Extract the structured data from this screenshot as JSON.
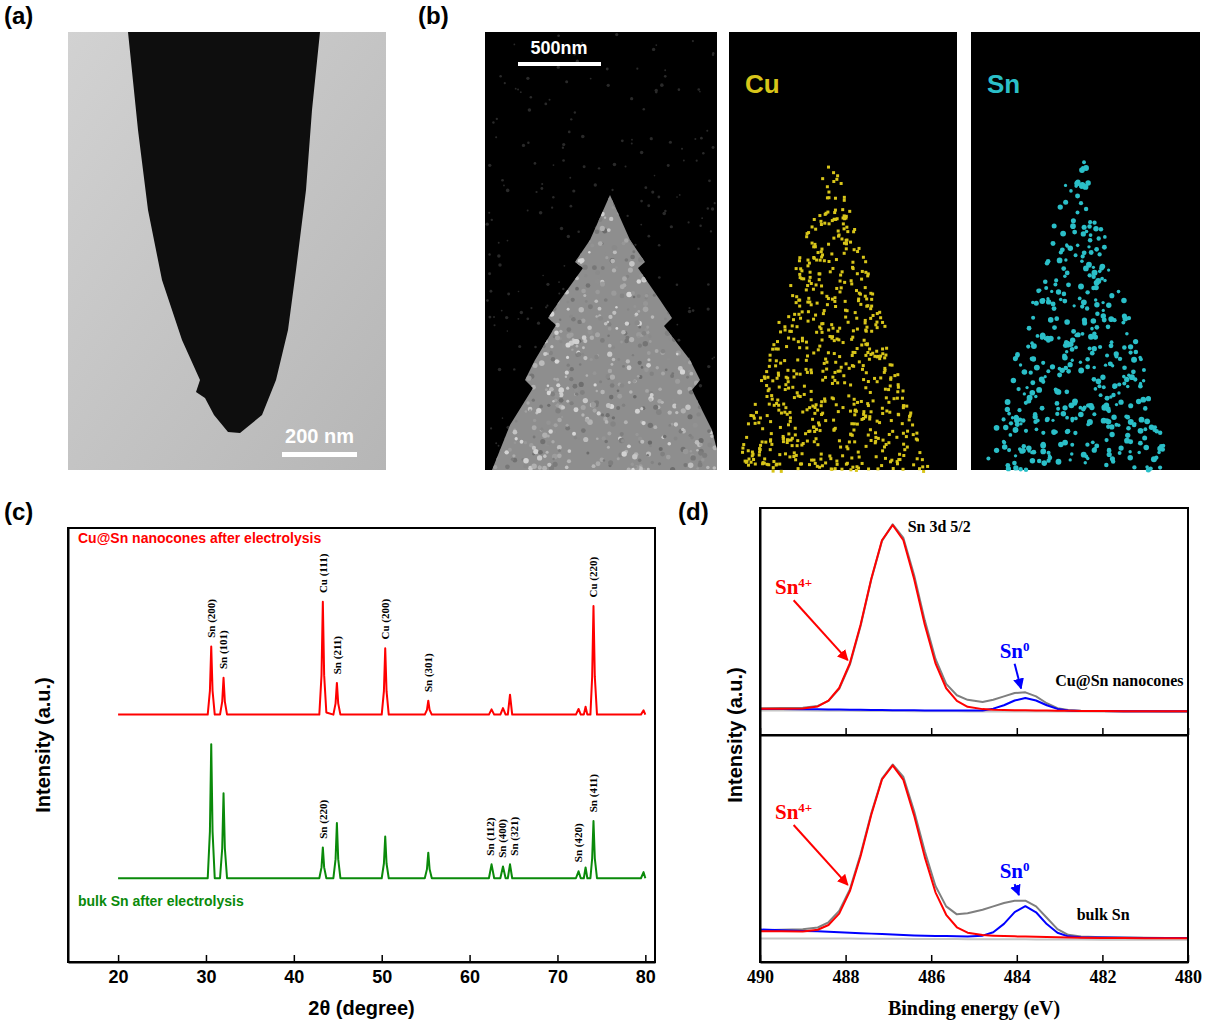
{
  "images": [
    {
      "letter": "(a)",
      "scale_bar": "200 nm"
    },
    {
      "letter": "(b)",
      "scale_bar": "500nm",
      "maps": [
        {
          "label": "Cu",
          "color": "#d8c51a"
        },
        {
          "label": "Sn",
          "color": "#2bbfc8"
        }
      ]
    }
  ],
  "chart_data": [
    {
      "letter": "(c)",
      "type": "line",
      "xlabel": "2θ (degree)",
      "ylabel": "Intensity (a.u.)",
      "xlim": [
        14.3,
        81.1
      ],
      "xticks": [
        20,
        30,
        40,
        50,
        60,
        70,
        80
      ],
      "ylim": [
        0,
        100
      ],
      "yticks": [],
      "tick_labels": "x",
      "x": [
        20,
        25,
        30.2,
        30.45,
        30.6,
        30.75,
        31,
        31.6,
        31.85,
        32,
        32.15,
        32.4,
        38,
        42.9,
        43.15,
        43.3,
        43.45,
        43.7,
        44.5,
        44.75,
        44.9,
        45.05,
        45.3,
        48,
        50,
        50.25,
        50.4,
        50.55,
        50.8,
        53,
        54.9,
        55.15,
        55.3,
        55.45,
        55.7,
        60,
        62.2,
        62.5,
        62.8,
        63.5,
        63.8,
        64.1,
        64.35,
        64.6,
        64.85,
        68,
        72.1,
        72.4,
        72.65,
        73,
        73.2,
        73.4,
        73.75,
        73.95,
        74.1,
        74.25,
        74.5,
        77,
        79.5,
        79.8,
        80
      ],
      "series": [
        {
          "name": "Cu@Sn nanocones after electrolysis",
          "color": "#ff0000",
          "values": [
            57,
            57,
            57,
            62.5,
            72.7,
            62.5,
            57,
            57,
            60,
            65.5,
            60,
            57,
            57,
            57,
            66.1,
            83,
            66.1,
            57.5,
            57,
            59.6,
            64.3,
            59.6,
            57,
            57,
            57,
            62.4,
            72.3,
            62.4,
            57,
            57,
            57,
            58.1,
            60.2,
            58.1,
            57,
            57,
            57,
            58.2,
            57,
            57,
            58.5,
            57,
            57,
            61.6,
            57,
            57,
            57,
            58.3,
            57,
            57,
            58.8,
            57,
            57,
            65.8,
            82,
            65.8,
            57,
            57,
            57,
            58,
            57
          ]
        },
        {
          "name": "bulk Sn after electrolysis",
          "color": "#0a8a0a",
          "values": [
            19.3,
            19.3,
            19.3,
            30.1,
            50.2,
            30.1,
            19.3,
            19.3,
            26.2,
            38.9,
            26.2,
            19.3,
            19.3,
            19.3,
            21.8,
            26.4,
            21.8,
            19.3,
            19.3,
            23.7,
            32,
            23.7,
            19.3,
            19.3,
            19.3,
            22.7,
            28.9,
            22.7,
            19.3,
            19.3,
            19.3,
            21.4,
            25.2,
            21.4,
            19.3,
            19.3,
            19.3,
            22.5,
            19.3,
            19.3,
            22,
            19.3,
            19.3,
            22.5,
            19.3,
            19.3,
            19.3,
            20.9,
            19.3,
            19.3,
            21.8,
            19.3,
            19.3,
            23.9,
            32.5,
            23.9,
            19.3,
            19.3,
            19.3,
            20.7,
            19.3
          ]
        }
      ],
      "annotations": [
        {
          "text": "Sn (200)",
          "x": 30.6,
          "y": 74.7
        },
        {
          "text": "Sn (101)",
          "x": 32,
          "y": 67.5
        },
        {
          "text": "Cu (111)",
          "x": 43.3,
          "y": 85
        },
        {
          "text": "Sn (211)",
          "x": 44.9,
          "y": 66.3
        },
        {
          "text": "Cu (200)",
          "x": 50.4,
          "y": 74.3
        },
        {
          "text": "Sn (301)",
          "x": 55.3,
          "y": 62.2
        },
        {
          "text": "Cu (220)",
          "x": 74.1,
          "y": 84
        },
        {
          "text": "Sn (220)",
          "x": 43.3,
          "y": 28.4
        },
        {
          "text": "Sn (112)",
          "x": 62.3,
          "y": 24.5
        },
        {
          "text": "Sn (400)",
          "x": 63.7,
          "y": 24
        },
        {
          "text": "Sn (321)",
          "x": 65.1,
          "y": 24.5
        },
        {
          "text": "Sn (420)",
          "x": 72.3,
          "y": 23
        },
        {
          "text": "Sn (411)",
          "x": 74.1,
          "y": 34.5
        }
      ]
    },
    {
      "letter": "(d)",
      "type": "line",
      "xlabel": "Binding energy (eV)",
      "ylabel": "Intensity (a.u.)",
      "xlim": [
        490,
        480
      ],
      "xticks": [
        490,
        488,
        486,
        484,
        482,
        480
      ],
      "tick_labels": "x",
      "subplots": [
        {
          "ylim": [
            0,
            100
          ],
          "yticks": [],
          "x": [
            490,
            489.5,
            489,
            488.65,
            488.4,
            488.15,
            487.9,
            487.65,
            487.4,
            487.15,
            486.9,
            486.65,
            486.4,
            486.15,
            485.9,
            485.65,
            485.4,
            485.15,
            484.8,
            484.55,
            484.3,
            484.05,
            483.8,
            483.55,
            483.3,
            483.05,
            482.8,
            482.5,
            482,
            481.5,
            481,
            480.5,
            480
          ],
          "series": [
            {
              "color": "#c4c4c4",
              "values": [
                10.8,
                10.8,
                10.8,
                10.7,
                10.7,
                10.7,
                10.7,
                10.6,
                10.6,
                10.6,
                10.6,
                10.6,
                10.5,
                10.5,
                10.5,
                10.5,
                10.5,
                10.4,
                10.4,
                10.4,
                10.4,
                10.4,
                10.4,
                10.3,
                10.3,
                10.3,
                10.3,
                10.3,
                10.2,
                10.2,
                10.2,
                10.2,
                10.2
              ]
            },
            {
              "color": "#7f7f7f",
              "values": [
                11.8,
                11.9,
                12.0,
                12.8,
                15.0,
                20.3,
                31.0,
                48.0,
                68.5,
                85.5,
                92.8,
                86.8,
                70.5,
                50.5,
                33.5,
                22.5,
                17.5,
                15.5,
                14.5,
                15.5,
                17.0,
                18.5,
                18.8,
                17.0,
                14.0,
                11.8,
                11.0,
                10.7,
                10.6,
                10.5,
                10.5,
                10.4,
                10.4
              ]
            },
            {
              "color": "#0000ff",
              "values": [
                11.5,
                11.4,
                11.3,
                11.3,
                11.2,
                11.2,
                11.1,
                11.1,
                11.0,
                11.0,
                10.9,
                10.9,
                10.9,
                10.8,
                10.8,
                10.8,
                10.8,
                10.8,
                10.8,
                11.6,
                13.1,
                15.2,
                16.3,
                15.2,
                13.1,
                11.5,
                10.8,
                10.6,
                10.6,
                10.5,
                10.5,
                10.5,
                10.5
              ]
            },
            {
              "color": "#ff0000",
              "values": [
                11.6,
                11.6,
                11.7,
                12.6,
                15.1,
                20.7,
                31.6,
                48.6,
                68.8,
                85.8,
                92.5,
                85.8,
                68.8,
                48.6,
                31.6,
                20.6,
                15.0,
                12.4,
                11.4,
                11.1,
                11.0,
                10.9,
                10.9,
                10.8,
                10.8,
                10.7,
                10.7,
                10.6,
                10.6,
                10.5,
                10.5,
                10.5,
                10.5
              ]
            }
          ],
          "annotations": [
            {
              "text": "Sn 3d 5/2",
              "x": 486.55,
              "y": 89.5,
              "color": "#000000"
            },
            {
              "text": "Sn",
              "sup": "4+",
              "x": 489.65,
              "y": 62,
              "color": "#ff0000",
              "arrow": [
                487.95,
                33
              ]
            },
            {
              "text": "Sn",
              "sup": "0",
              "x": 484.4,
              "y": 34,
              "color": "#0000ff",
              "arrow": [
                483.9,
                20.5
              ]
            },
            {
              "text": "Cu@Sn nanocones",
              "x": 483.1,
              "y": 21.7,
              "color": "#000000"
            }
          ]
        },
        {
          "ylim": [
            0,
            100
          ],
          "yticks": [],
          "x": [
            490,
            489.5,
            489,
            488.65,
            488.4,
            488.15,
            487.9,
            487.65,
            487.4,
            487.15,
            486.9,
            486.65,
            486.4,
            486.15,
            485.9,
            485.65,
            485.4,
            485.15,
            484.8,
            484.55,
            484.3,
            484.05,
            483.8,
            483.55,
            483.3,
            483.05,
            482.8,
            482.5,
            482,
            481.5,
            481,
            480.5,
            480
          ],
          "series": [
            {
              "color": "#c4c4c4",
              "values": [
                10.4,
                10.4,
                10.4,
                10.3,
                10.3,
                10.3,
                10.3,
                10.2,
                10.2,
                10.2,
                10.2,
                10.2,
                10.1,
                10.1,
                10.1,
                10.1,
                10.1,
                10.0,
                10.0,
                10.0,
                10.0,
                10.0,
                10.0,
                9.9,
                9.9,
                9.9,
                9.9,
                9.9,
                9.8,
                9.8,
                9.8,
                9.8,
                9.8
              ]
            },
            {
              "color": "#7f7f7f",
              "values": [
                14.0,
                14.2,
                14.4,
                15.2,
                17.5,
                22.5,
                32.0,
                47.5,
                65.5,
                80.8,
                87.0,
                81.5,
                66.5,
                48.8,
                33.5,
                24.5,
                21.0,
                21.5,
                23.0,
                24.5,
                26.0,
                27.0,
                27.0,
                24.5,
                19.5,
                14.5,
                12.0,
                11.2,
                10.9,
                10.8,
                10.7,
                10.6,
                10.6
              ]
            },
            {
              "color": "#0000ff",
              "values": [
                14.3,
                14.0,
                13.7,
                13.5,
                13.3,
                13.1,
                12.9,
                12.7,
                12.5,
                12.3,
                12.1,
                11.9,
                11.7,
                11.6,
                11.5,
                11.4,
                11.3,
                11.2,
                11.6,
                13.1,
                16.8,
                22.0,
                24.6,
                21.9,
                16.7,
                12.9,
                11.3,
                10.9,
                10.8,
                10.7,
                10.6,
                10.6,
                10.6
              ]
            },
            {
              "color": "#ff0000",
              "values": [
                13.6,
                13.5,
                13.4,
                14.2,
                16.3,
                21.3,
                31.2,
                46.6,
                64.9,
                80.4,
                86.6,
                80.2,
                64.6,
                46.2,
                30.7,
                20.8,
                15.3,
                12.9,
                11.9,
                11.6,
                11.4,
                11.3,
                11.2,
                11.1,
                11.0,
                10.9,
                10.8,
                10.7,
                10.6,
                10.6,
                10.5,
                10.5,
                10.5
              ]
            }
          ],
          "annotations": [
            {
              "text": "Sn",
              "sup": "4+",
              "x": 489.65,
              "y": 63,
              "color": "#ff0000",
              "arrow": [
                487.95,
                34
              ]
            },
            {
              "text": "Sn",
              "sup": "0",
              "x": 484.4,
              "y": 37,
              "color": "#0000ff",
              "arrow": [
                483.95,
                29.5
              ]
            },
            {
              "text": "bulk Sn",
              "x": 482.6,
              "y": 18.5,
              "color": "#000000"
            }
          ]
        }
      ]
    }
  ]
}
